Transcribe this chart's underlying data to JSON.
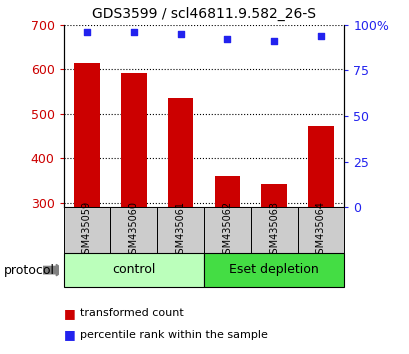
{
  "title": "GDS3599 / scl46811.9.582_26-S",
  "categories": [
    "GSM435059",
    "GSM435060",
    "GSM435061",
    "GSM435062",
    "GSM435063",
    "GSM435064"
  ],
  "bar_values": [
    614,
    592,
    535,
    360,
    342,
    472
  ],
  "scatter_values": [
    96,
    96,
    95,
    92,
    91,
    94
  ],
  "ylim_left": [
    290,
    700
  ],
  "ylim_right": [
    0,
    100
  ],
  "yticks_left": [
    300,
    400,
    500,
    600,
    700
  ],
  "yticks_right": [
    0,
    25,
    50,
    75,
    100
  ],
  "ytick_labels_right": [
    "0",
    "25",
    "50",
    "75",
    "100%"
  ],
  "bar_color": "#cc0000",
  "scatter_color": "#2222ee",
  "bar_width": 0.55,
  "group_labels": [
    "control",
    "Eset depletion"
  ],
  "group_colors_light": [
    "#bbffbb",
    "#44dd44"
  ],
  "group_ranges": [
    [
      0,
      3
    ],
    [
      3,
      6
    ]
  ],
  "protocol_label": "protocol",
  "legend_bar_label": "transformed count",
  "legend_scatter_label": "percentile rank within the sample",
  "tick_color_left": "#cc0000",
  "tick_color_right": "#2222ee",
  "label_area_color": "#cccccc",
  "grid_linestyle": "dotted",
  "grid_color": "#000000"
}
